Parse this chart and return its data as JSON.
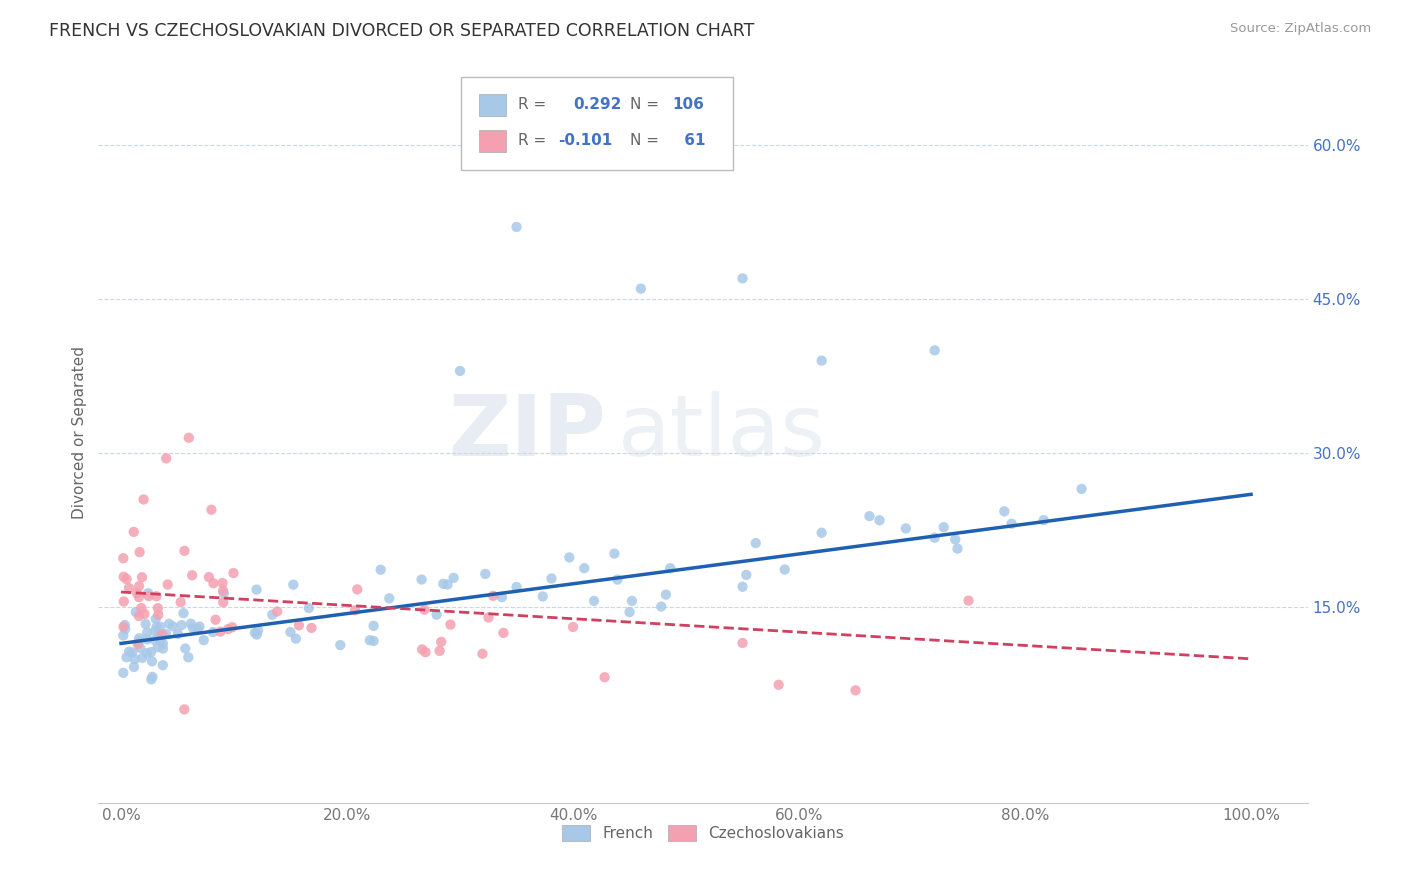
{
  "title": "FRENCH VS CZECHOSLOVAKIAN DIVORCED OR SEPARATED CORRELATION CHART",
  "source_text": "Source: ZipAtlas.com",
  "ylabel": "Divorced or Separated",
  "r_french": 0.292,
  "n_french": 106,
  "r_czech": -0.101,
  "n_czech": 61,
  "x_tick_vals": [
    0.0,
    0.2,
    0.4,
    0.6,
    0.8,
    1.0
  ],
  "x_tick_labels": [
    "0.0%",
    "20.0%",
    "40.0%",
    "60.0%",
    "80.0%",
    "100.0%"
  ],
  "y_tick_vals": [
    0.15,
    0.3,
    0.45,
    0.6
  ],
  "y_tick_labels": [
    "15.0%",
    "30.0%",
    "45.0%",
    "60.0%"
  ],
  "xlim": [
    -0.02,
    1.05
  ],
  "ylim": [
    -0.04,
    0.68
  ],
  "color_french": "#a8c8e8",
  "color_czech": "#f4a0b0",
  "color_french_line": "#2060b0",
  "color_czech_line": "#d04060",
  "watermark_zip": "ZIP",
  "watermark_atlas": "atlas",
  "legend_text_color": "#4472c4",
  "legend_label_color": "#666666",
  "bottom_legend_labels": [
    "French",
    "Czechoslovakians"
  ]
}
